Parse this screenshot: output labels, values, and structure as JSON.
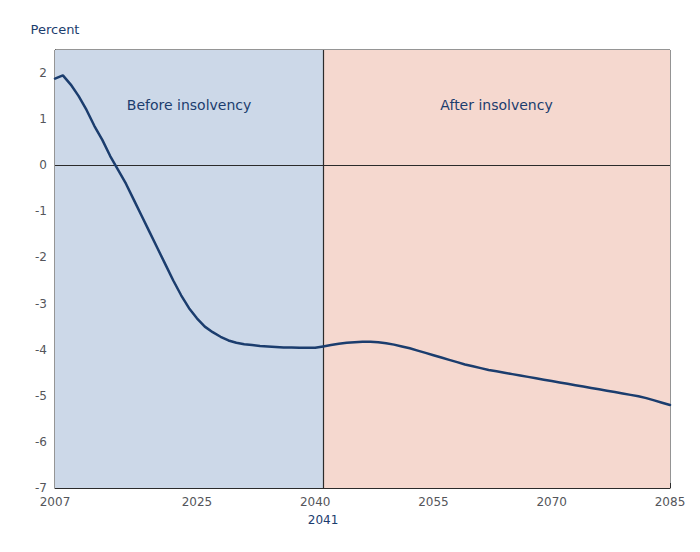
{
  "chart_data": {
    "type": "line",
    "ylabel": "Percent",
    "x": [
      2007,
      2008,
      2009,
      2010,
      2011,
      2012,
      2013,
      2014,
      2015,
      2016,
      2017,
      2018,
      2019,
      2020,
      2021,
      2022,
      2023,
      2024,
      2025,
      2026,
      2027,
      2028,
      2029,
      2030,
      2031,
      2032,
      2033,
      2034,
      2035,
      2036,
      2037,
      2038,
      2039,
      2040,
      2041,
      2042,
      2043,
      2044,
      2045,
      2046,
      2047,
      2048,
      2049,
      2050,
      2051,
      2052,
      2053,
      2054,
      2055,
      2056,
      2057,
      2058,
      2059,
      2060,
      2061,
      2062,
      2063,
      2064,
      2065,
      2066,
      2067,
      2068,
      2069,
      2070,
      2071,
      2072,
      2073,
      2074,
      2075,
      2076,
      2077,
      2078,
      2079,
      2080,
      2081,
      2082,
      2083,
      2084,
      2085
    ],
    "values": [
      1.88,
      1.95,
      1.75,
      1.5,
      1.2,
      0.85,
      0.55,
      0.2,
      -0.1,
      -0.4,
      -0.75,
      -1.1,
      -1.45,
      -1.8,
      -2.15,
      -2.5,
      -2.82,
      -3.1,
      -3.32,
      -3.5,
      -3.62,
      -3.72,
      -3.8,
      -3.85,
      -3.88,
      -3.9,
      -3.92,
      -3.93,
      -3.94,
      -3.95,
      -3.95,
      -3.96,
      -3.96,
      -3.96,
      -3.93,
      -3.9,
      -3.87,
      -3.85,
      -3.84,
      -3.83,
      -3.83,
      -3.84,
      -3.86,
      -3.89,
      -3.93,
      -3.97,
      -4.02,
      -4.07,
      -4.12,
      -4.17,
      -4.22,
      -4.27,
      -4.32,
      -4.36,
      -4.4,
      -4.44,
      -4.47,
      -4.5,
      -4.53,
      -4.56,
      -4.59,
      -4.62,
      -4.65,
      -4.68,
      -4.71,
      -4.74,
      -4.77,
      -4.8,
      -4.83,
      -4.86,
      -4.89,
      -4.92,
      -4.95,
      -4.98,
      -5.01,
      -5.05,
      -5.1,
      -5.15,
      -5.2
    ],
    "color": "#1b3d6e",
    "xlim": [
      2007,
      2085
    ],
    "ylim": [
      -7,
      2.5
    ],
    "xticks": [
      2007,
      2025,
      2040,
      2055,
      2070,
      2085
    ],
    "yticks": [
      -7,
      -6,
      -5,
      -4,
      -3,
      -2,
      -1,
      0,
      1,
      2
    ],
    "grid": true,
    "annotations": [
      {
        "text": "Before insolvency",
        "x_from": 2007,
        "x_to": 2041,
        "color": "#ccd8e8"
      },
      {
        "text": "After insolvency",
        "x_from": 2041,
        "x_to": 2085,
        "color": "#f5d8cf"
      },
      {
        "text": "2041",
        "x": 2041
      },
      {
        "y": 0
      }
    ]
  }
}
